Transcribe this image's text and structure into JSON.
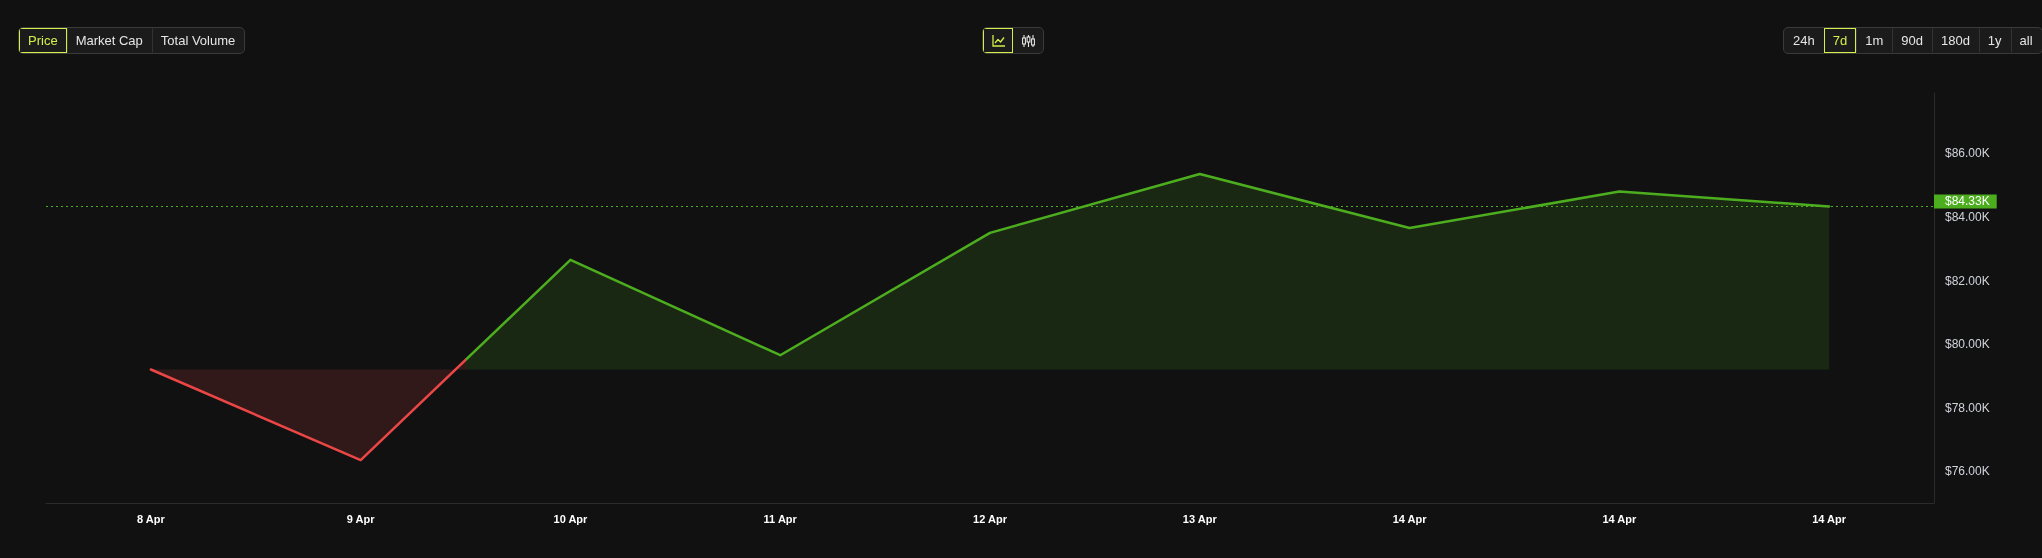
{
  "chart_data": {
    "type": "area",
    "categories": [
      "8 Apr",
      "9 Apr",
      "10 Apr",
      "11 Apr",
      "12 Apr",
      "13 Apr",
      "14 Apr",
      "14 Apr",
      "14 Apr"
    ],
    "values": [
      79.2,
      76.35,
      82.65,
      79.65,
      83.5,
      85.35,
      83.65,
      84.8,
      84.33
    ],
    "colors": [
      "#ea4646",
      "#ea4646",
      "#4cad1e",
      "#4cad1e",
      "#4cad1e",
      "#4cad1e",
      "#4cad1e",
      "#4cad1e",
      "#4cad1e"
    ],
    "ylim": [
      75,
      87.9
    ],
    "yticks": [
      {
        "value": 76,
        "label": "$76.00K"
      },
      {
        "value": 78,
        "label": "$78.00K"
      },
      {
        "value": 80,
        "label": "$80.00K"
      },
      {
        "value": 82,
        "label": "$82.00K"
      },
      {
        "value": 84,
        "label": "$84.00K"
      },
      {
        "value": 86,
        "label": "$86.00K"
      }
    ],
    "ref_lines": [
      {
        "axis": "y",
        "value": 84.33,
        "label": "$84.33K",
        "color": "#4cad1e",
        "line_style": "dotted"
      }
    ],
    "annotations": [
      "Price",
      "Market Cap",
      "Total Volume",
      "24h",
      "7d",
      "1m",
      "90d",
      "180d",
      "1y",
      "all"
    ]
  }
}
